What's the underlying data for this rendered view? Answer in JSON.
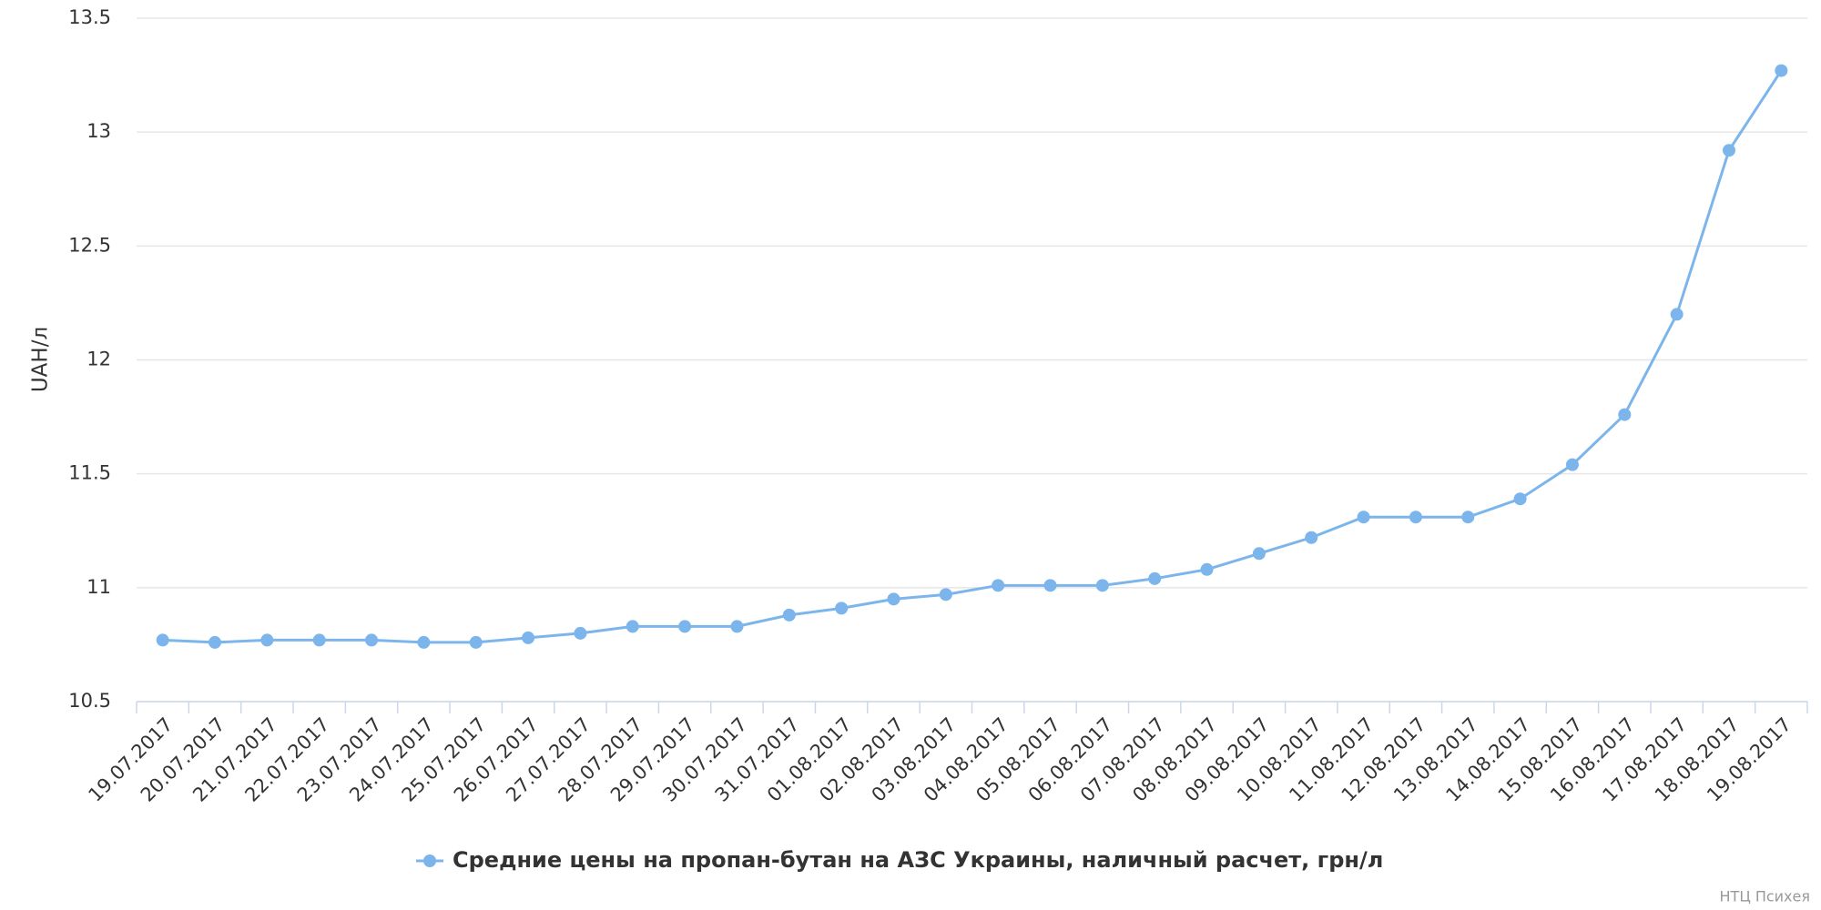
{
  "chart_data": {
    "type": "line",
    "y_label": "UAH/л",
    "categories": [
      "19.07.2017",
      "20.07.2017",
      "21.07.2017",
      "22.07.2017",
      "23.07.2017",
      "24.07.2017",
      "25.07.2017",
      "26.07.2017",
      "27.07.2017",
      "28.07.2017",
      "29.07.2017",
      "30.07.2017",
      "31.07.2017",
      "01.08.2017",
      "02.08.2017",
      "03.08.2017",
      "04.08.2017",
      "05.08.2017",
      "06.08.2017",
      "07.08.2017",
      "08.08.2017",
      "09.08.2017",
      "10.08.2017",
      "11.08.2017",
      "12.08.2017",
      "13.08.2017",
      "14.08.2017",
      "15.08.2017",
      "16.08.2017",
      "17.08.2017",
      "18.08.2017",
      "19.08.2017"
    ],
    "series": [
      {
        "name": "Средние цены на пропан-бутан на АЗС Украины, наличный расчет, грн/л",
        "color": "#7cb5ec",
        "values": [
          10.77,
          10.76,
          10.77,
          10.77,
          10.77,
          10.76,
          10.76,
          10.78,
          10.8,
          10.83,
          10.83,
          10.83,
          10.88,
          10.91,
          10.95,
          10.97,
          11.01,
          11.01,
          11.01,
          11.04,
          11.08,
          11.15,
          11.22,
          11.31,
          11.31,
          11.31,
          11.39,
          11.54,
          11.76,
          12.2,
          12.92,
          13.27
        ]
      }
    ],
    "ylim": [
      10.5,
      13.5
    ],
    "yticks": [
      10.5,
      11,
      11.5,
      12,
      12.5,
      13,
      13.5
    ],
    "grid": true,
    "credit": "НТЦ Психея"
  }
}
